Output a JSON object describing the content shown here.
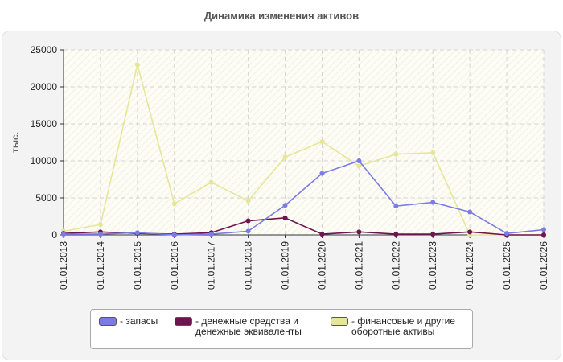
{
  "chart_data": {
    "type": "line",
    "title": "Динамика изменения активов",
    "ylabel": "тыс.",
    "x": [
      "01.01.2013",
      "01.01.2014",
      "01.01.2015",
      "01.01.2016",
      "01.01.2017",
      "01.01.2018",
      "01.01.2019",
      "01.01.2020",
      "01.01.2021",
      "01.01.2022",
      "01.01.2023",
      "01.01.2024",
      "01.01.2025",
      "01.01.2026"
    ],
    "ylim": [
      0,
      25000
    ],
    "yticks": [
      "0",
      "5000",
      "10000",
      "15000",
      "20000",
      "25000"
    ],
    "grid": true,
    "legend_position": "bottom",
    "series": [
      {
        "name": "- запасы",
        "color": "#7b7be6",
        "values": [
          100,
          100,
          300,
          0,
          100,
          500,
          4000,
          8300,
          10000,
          3900,
          4400,
          3100,
          200,
          700
        ]
      },
      {
        "name": "- денежные средства и\nденежные эквиваленты",
        "color": "#6e1450",
        "values": [
          200,
          400,
          200,
          100,
          300,
          1900,
          2300,
          100,
          400,
          100,
          100,
          400,
          0,
          0
        ]
      },
      {
        "name": "- финансовые и другие\nоборотные активы",
        "color": "#e6e698",
        "values": [
          500,
          1400,
          23000,
          4200,
          7100,
          4600,
          10500,
          12600,
          9300,
          10900,
          11100,
          0,
          0,
          0
        ]
      }
    ]
  }
}
